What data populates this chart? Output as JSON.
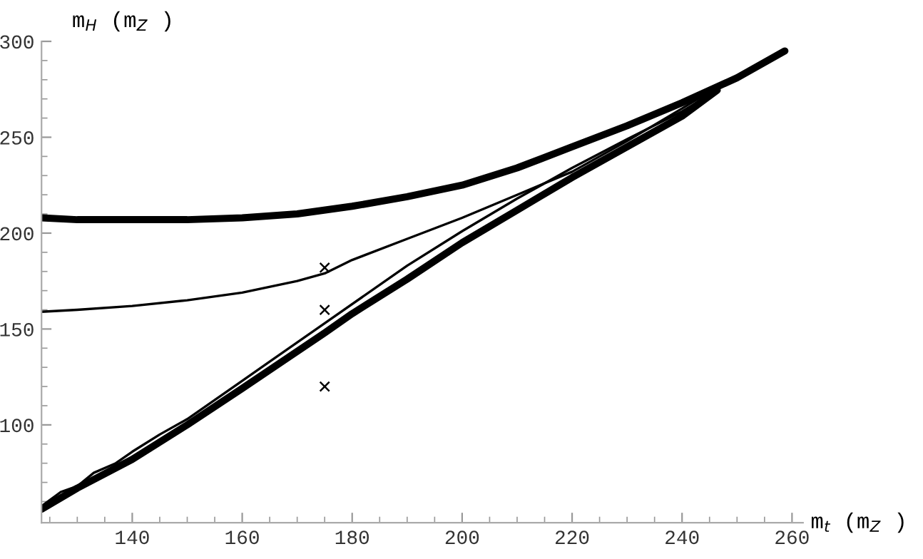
{
  "chart_data": {
    "type": "line",
    "xlabel": "m$_{t}$ (m$_{Z}$ )",
    "ylabel": "m$_{H}$ (m$_{Z}$ )",
    "xlim": [
      123.5,
      262
    ],
    "ylim": [
      49,
      300
    ],
    "xticks": [
      140,
      160,
      180,
      200,
      220,
      240,
      260
    ],
    "yticks": [
      100,
      150,
      200,
      250,
      300
    ],
    "grid": false,
    "legend": false,
    "marker": "none",
    "line_style": "solid",
    "series": [
      {
        "color": "#000000",
        "x": [
          123.5,
          130,
          140,
          150,
          160,
          170,
          180,
          190,
          200,
          210,
          220,
          230,
          240,
          250,
          258.7
        ],
        "values": [
          208,
          207,
          207,
          207,
          208,
          210,
          214,
          219,
          225,
          234,
          245,
          256,
          268,
          281,
          295
        ]
      },
      {
        "color": "#000000",
        "x": [
          123.5,
          130,
          140,
          150,
          160,
          170,
          175,
          180,
          190,
          200,
          210,
          220,
          230,
          240,
          246.4
        ],
        "values": [
          159,
          160,
          162,
          165,
          169,
          175,
          179,
          186,
          197,
          208,
          220,
          232,
          248,
          265,
          276
        ]
      },
      {
        "color": "#000000",
        "x": [
          123.5,
          127,
          130,
          133,
          137,
          140,
          145,
          150,
          160,
          175,
          190,
          200,
          210,
          220,
          230,
          240,
          246.4
        ],
        "values": [
          57.6,
          65,
          68,
          75,
          80,
          86,
          95,
          103,
          123,
          153,
          183,
          201,
          218,
          234,
          249,
          263.5,
          274.5
        ]
      },
      {
        "color": "#000000",
        "x": [
          123.5,
          130,
          140,
          150,
          160,
          175,
          180,
          190,
          200,
          210,
          220,
          230,
          240,
          246.4
        ],
        "values": [
          56,
          67,
          82,
          100,
          119,
          148,
          158,
          176,
          195,
          212,
          229,
          245,
          261,
          274.5
        ]
      },
      {
        "type": "scatter",
        "marker": "cross",
        "color": "#000000",
        "x": [
          175,
          175,
          175
        ],
        "values": [
          182,
          160,
          120
        ]
      }
    ]
  }
}
